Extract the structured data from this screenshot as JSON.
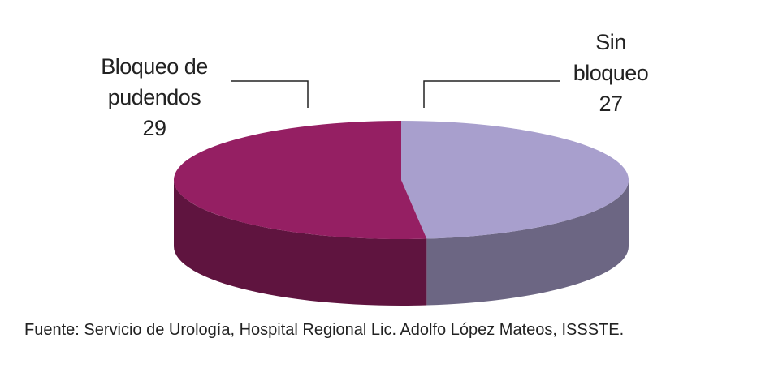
{
  "chart_data": {
    "type": "pie3d",
    "categories": [
      "Sin bloqueo",
      "Bloqueo de pudendos"
    ],
    "values": [
      27,
      29
    ],
    "colors": [
      "#a89fcd",
      "#951f63"
    ],
    "source": "Fuente: Servicio de Urología, Hospital Regional Lic. Adolfo López Mateos, ISSSTE."
  }
}
